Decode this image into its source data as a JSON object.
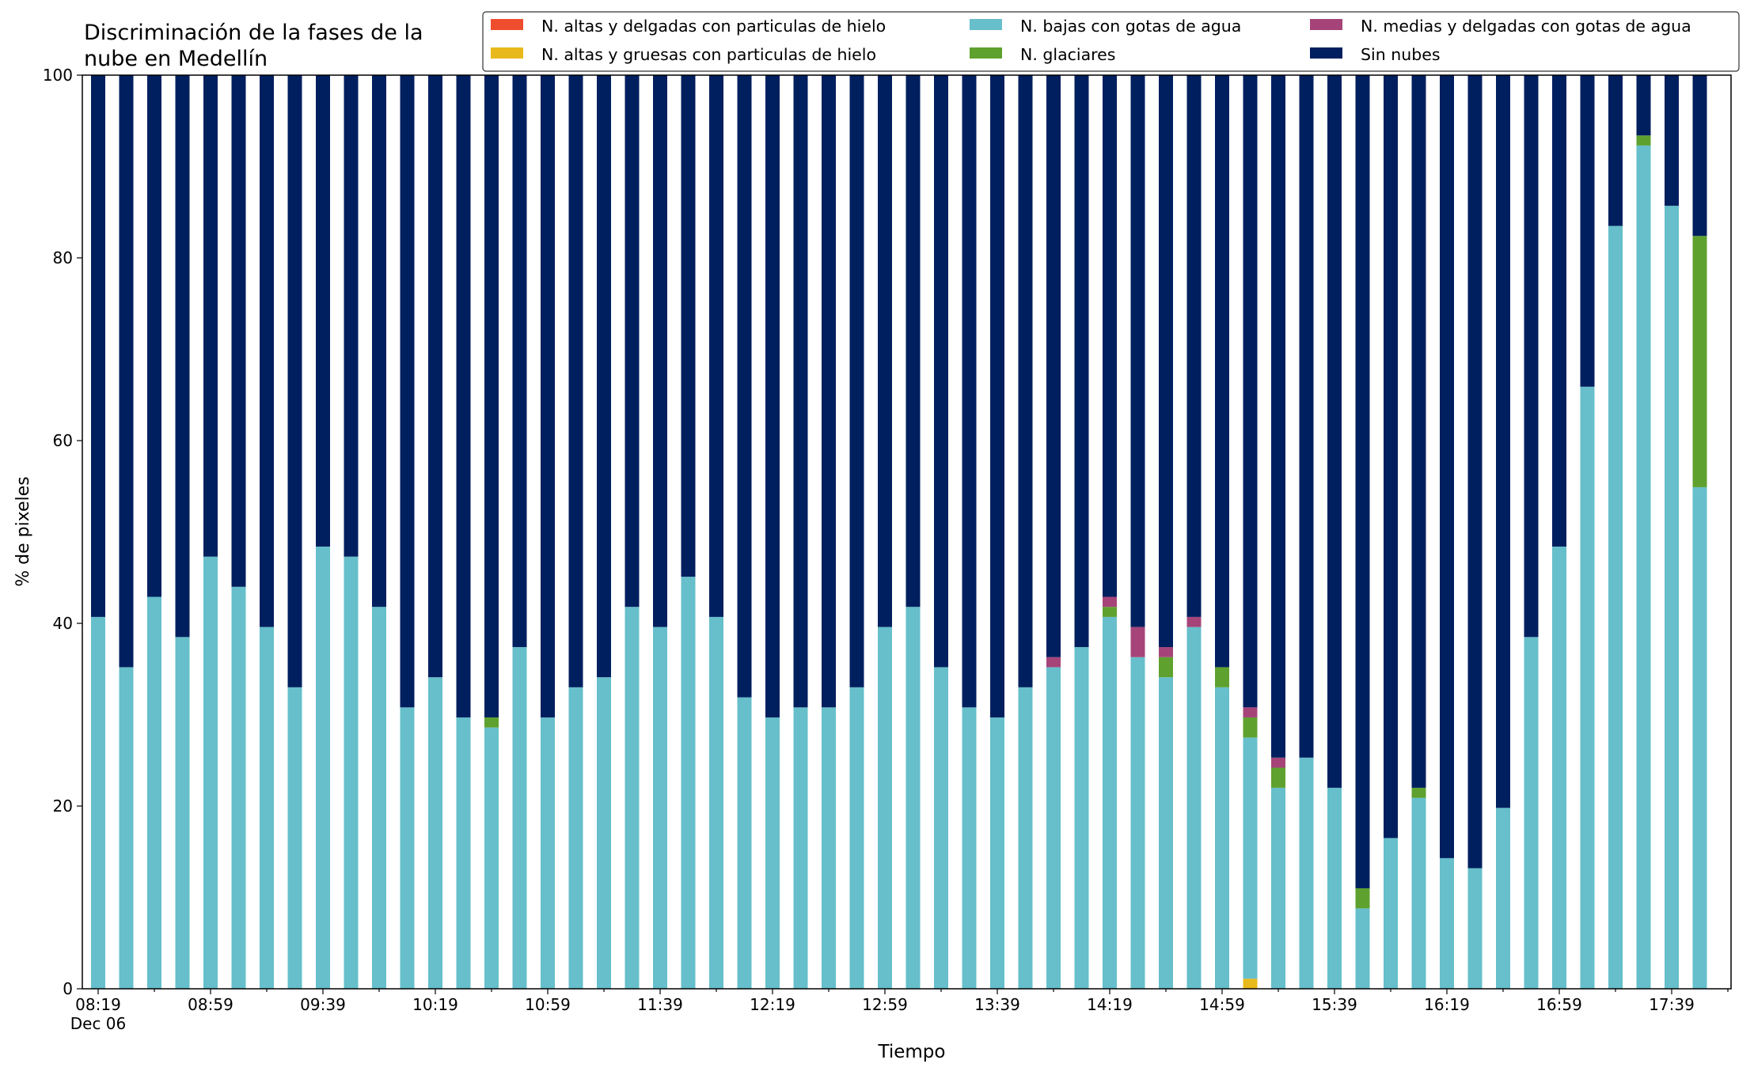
{
  "chart_data": {
    "type": "bar",
    "stacked": true,
    "title_lines": [
      "Discriminación de la fases de la",
      "nube en Medellín"
    ],
    "xlabel": "Tiempo",
    "ylabel": "% de pixeles",
    "ylim": [
      0,
      100
    ],
    "yticks": [
      0,
      20,
      40,
      60,
      80,
      100
    ],
    "grid": false,
    "legend_position": "top-right",
    "x_interval_minutes": 10,
    "x_start": "2023-12-06 08:19",
    "x_tick_labels": [
      "08:19",
      "08:59",
      "09:39",
      "10:19",
      "10:59",
      "11:39",
      "12:19",
      "12:59",
      "13:39",
      "14:19",
      "14:59",
      "15:39",
      "16:19",
      "16:59",
      "17:39"
    ],
    "x_tick_sublabel": "Dec 06",
    "series": [
      {
        "name": "N. altas y delgadas con particulas de hielo",
        "color": "#ee4d2e",
        "values": [
          0,
          0,
          0,
          0,
          0,
          0,
          0,
          0,
          0,
          0,
          0,
          0,
          0,
          0,
          0,
          0,
          0,
          0,
          0,
          0,
          0,
          0,
          0,
          0,
          0,
          0,
          0,
          0,
          0,
          0,
          0,
          0,
          0,
          0,
          0,
          0,
          0,
          0,
          0,
          0,
          0,
          0,
          0,
          0,
          0,
          0,
          0,
          0,
          0,
          0,
          0,
          0,
          0,
          0,
          0,
          0,
          0,
          0
        ]
      },
      {
        "name": "N. altas y gruesas con particulas de hielo",
        "color": "#e8b91a",
        "values": [
          0,
          0,
          0,
          0,
          0,
          0,
          0,
          0,
          0,
          0,
          0,
          0,
          0,
          0,
          0,
          0,
          0,
          0,
          0,
          0,
          0,
          0,
          0,
          0,
          0,
          0,
          0,
          0,
          0,
          0,
          0,
          0,
          0,
          0,
          0,
          0,
          0,
          0,
          0,
          0,
          0,
          1.1,
          0,
          0,
          0,
          0,
          0,
          0,
          0,
          0,
          0,
          0,
          0,
          0,
          0,
          0,
          0,
          0
        ]
      },
      {
        "name": "N. bajas con gotas de agua",
        "color": "#66bfcb",
        "values": [
          40.7,
          35.2,
          42.9,
          38.5,
          47.3,
          44.0,
          39.6,
          33.0,
          48.4,
          47.3,
          41.8,
          30.8,
          34.1,
          29.7,
          28.6,
          37.4,
          29.7,
          33.0,
          34.1,
          41.8,
          39.6,
          45.1,
          40.7,
          31.9,
          29.7,
          30.8,
          30.8,
          33.0,
          39.6,
          41.8,
          35.2,
          30.8,
          29.7,
          33.0,
          35.2,
          37.4,
          40.7,
          36.3,
          34.1,
          39.6,
          33.0,
          26.4,
          22.0,
          25.3,
          22.0,
          8.8,
          16.5,
          20.9,
          14.3,
          13.2,
          19.8,
          38.5,
          48.4,
          65.9,
          83.5,
          92.3,
          85.7,
          54.9
        ]
      },
      {
        "name": "N. glaciares",
        "color": "#5fa12f",
        "values": [
          0,
          0,
          0,
          0,
          0,
          0,
          0,
          0,
          0,
          0,
          0,
          0,
          0,
          0,
          1.1,
          0,
          0,
          0,
          0,
          0,
          0,
          0,
          0,
          0,
          0,
          0,
          0,
          0,
          0,
          0,
          0,
          0,
          0,
          0,
          0,
          0,
          1.1,
          0,
          2.2,
          0,
          2.2,
          2.2,
          2.2,
          0,
          0,
          2.2,
          0,
          1.1,
          0,
          0,
          0,
          0,
          0,
          0,
          0,
          1.1,
          0,
          27.5
        ]
      },
      {
        "name": "N. medias y delgadas con gotas de agua",
        "color": "#a6447a",
        "values": [
          0,
          0,
          0,
          0,
          0,
          0,
          0,
          0,
          0,
          0,
          0,
          0,
          0,
          0,
          0,
          0,
          0,
          0,
          0,
          0,
          0,
          0,
          0,
          0,
          0,
          0,
          0,
          0,
          0,
          0,
          0,
          0,
          0,
          0,
          1.1,
          0,
          1.1,
          3.3,
          1.1,
          1.1,
          0,
          1.1,
          1.1,
          0,
          0,
          0,
          0,
          0,
          0,
          0,
          0,
          0,
          0,
          0,
          0,
          0,
          0,
          0
        ]
      },
      {
        "name": "Sin nubes",
        "color": "#001f5f",
        "values": [
          59.3,
          64.8,
          57.1,
          61.5,
          52.7,
          56.0,
          60.4,
          67.0,
          51.6,
          52.7,
          58.2,
          69.2,
          65.9,
          70.3,
          70.3,
          62.6,
          70.3,
          67.0,
          65.9,
          58.2,
          60.4,
          54.9,
          59.3,
          68.1,
          70.3,
          69.2,
          69.2,
          67.0,
          60.4,
          58.2,
          64.8,
          69.2,
          70.3,
          67.0,
          63.7,
          62.6,
          57.1,
          60.4,
          62.6,
          59.3,
          64.8,
          69.2,
          74.7,
          74.7,
          78.0,
          89.0,
          83.5,
          78.0,
          85.7,
          86.8,
          80.2,
          61.5,
          51.6,
          34.1,
          16.5,
          6.6,
          14.3,
          17.6
        ]
      }
    ]
  }
}
